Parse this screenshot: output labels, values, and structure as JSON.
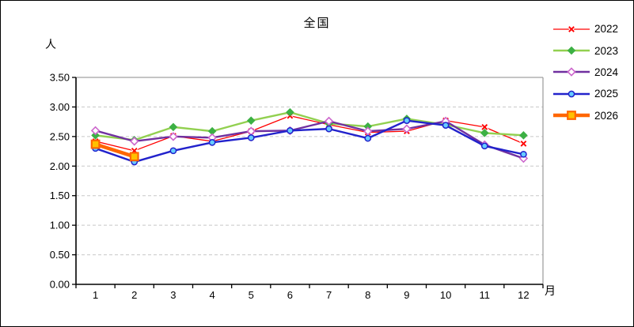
{
  "window": {
    "background": "#ffffff",
    "border_color": "#000000"
  },
  "chart_data": {
    "type": "line",
    "title": "全国",
    "y_unit_label": "人",
    "x_unit_label": "月",
    "categories": [
      1,
      2,
      3,
      4,
      5,
      6,
      7,
      8,
      9,
      10,
      11,
      12
    ],
    "ylim": [
      0,
      3.5
    ],
    "ytick_step": 0.5,
    "ytick_labels_top_to_bottom": [
      "3.50",
      "3.00",
      "2.50",
      "2.00",
      "1.50",
      "1.00",
      "0.50",
      "0.00"
    ],
    "grid": "horizontal-dashed",
    "gridline_color": "#c8c8c8",
    "frame_color": "#a0a0a0",
    "axis_color": "#000000",
    "legend_position": "top-right",
    "series": [
      {
        "name": "2022",
        "color": "#ff0000",
        "line_width": 1.3,
        "marker": "x",
        "marker_color": "#ff0000",
        "values": [
          2.42,
          2.26,
          2.51,
          2.42,
          2.59,
          2.85,
          2.7,
          2.57,
          2.59,
          2.77,
          2.66,
          2.38
        ]
      },
      {
        "name": "2023",
        "color": "#92d050",
        "line_width": 2.4,
        "marker": "diamond-filled",
        "marker_color": "#3cb044",
        "values": [
          2.52,
          2.44,
          2.66,
          2.59,
          2.77,
          2.91,
          2.72,
          2.67,
          2.8,
          2.7,
          2.56,
          2.52
        ]
      },
      {
        "name": "2024",
        "color": "#7030a0",
        "line_width": 2.4,
        "marker": "diamond-open",
        "marker_color": "#cc66cc",
        "marker_fill": "#ffffff",
        "values": [
          2.6,
          2.42,
          2.5,
          2.48,
          2.59,
          2.6,
          2.76,
          2.59,
          2.63,
          2.76,
          2.36,
          2.13
        ]
      },
      {
        "name": "2025",
        "color": "#2222cc",
        "line_width": 2.4,
        "marker": "circle",
        "marker_color": "#2222cc",
        "marker_fill": "#66ccff",
        "values": [
          2.3,
          2.07,
          2.26,
          2.4,
          2.48,
          2.6,
          2.63,
          2.47,
          2.77,
          2.69,
          2.34,
          2.2
        ]
      },
      {
        "name": "2026",
        "color": "#ff6600",
        "line_width": 4.6,
        "marker": "square",
        "marker_color": "#ff6600",
        "marker_fill": "#ffc000",
        "values": [
          2.37,
          2.16,
          null,
          null,
          null,
          null,
          null,
          null,
          null,
          null,
          null,
          null
        ]
      }
    ]
  }
}
